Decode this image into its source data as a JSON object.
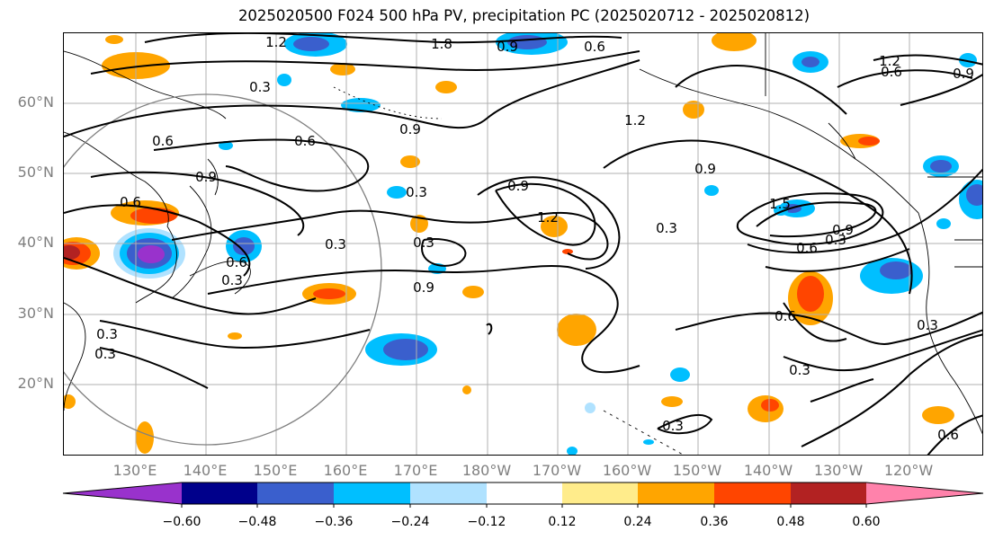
{
  "title": "2025020500 F024 500 hPa PV, precipitation PC (2025020712 - 2025020812)",
  "lat_labels": [
    "60°N",
    "50°N",
    "40°N",
    "30°N",
    "20°N"
  ],
  "lon_labels": [
    "130°E",
    "140°E",
    "150°E",
    "160°E",
    "170°E",
    "180°W",
    "170°W",
    "160°W",
    "150°W",
    "140°W",
    "130°W",
    "120°W"
  ],
  "colorbar": {
    "colors": [
      "#9932cc",
      "#00008b",
      "#3a5fcd",
      "#00bfff",
      "#b0e2ff",
      "#ffffff",
      "#ffec8b",
      "#ffa500",
      "#ff4500",
      "#b22222",
      "#ff82ab"
    ],
    "tick_labels": [
      "−0.60",
      "−0.48",
      "−0.36",
      "−0.24",
      "−0.12",
      "0.12",
      "0.24",
      "0.36",
      "0.48",
      "0.60"
    ]
  },
  "contour_labels": [
    "1.2",
    "1.8",
    "0.9",
    "0.6",
    "1.2",
    "0.9",
    "0.3",
    "0.6",
    "0.6",
    "0.9",
    "0.9",
    "0.3",
    "0.9",
    "0.6",
    "0.3",
    "0.6",
    "1.2",
    "0.3",
    "1.2",
    "0.9",
    "0.3",
    "0.9",
    "0.3",
    "0.6",
    "0.3",
    "1.5",
    "0.9",
    "0.6",
    "0.6",
    "0.3",
    "0.3",
    "0.3",
    "0.6",
    "0.3",
    "0.3",
    "1.2",
    "0.9"
  ]
}
